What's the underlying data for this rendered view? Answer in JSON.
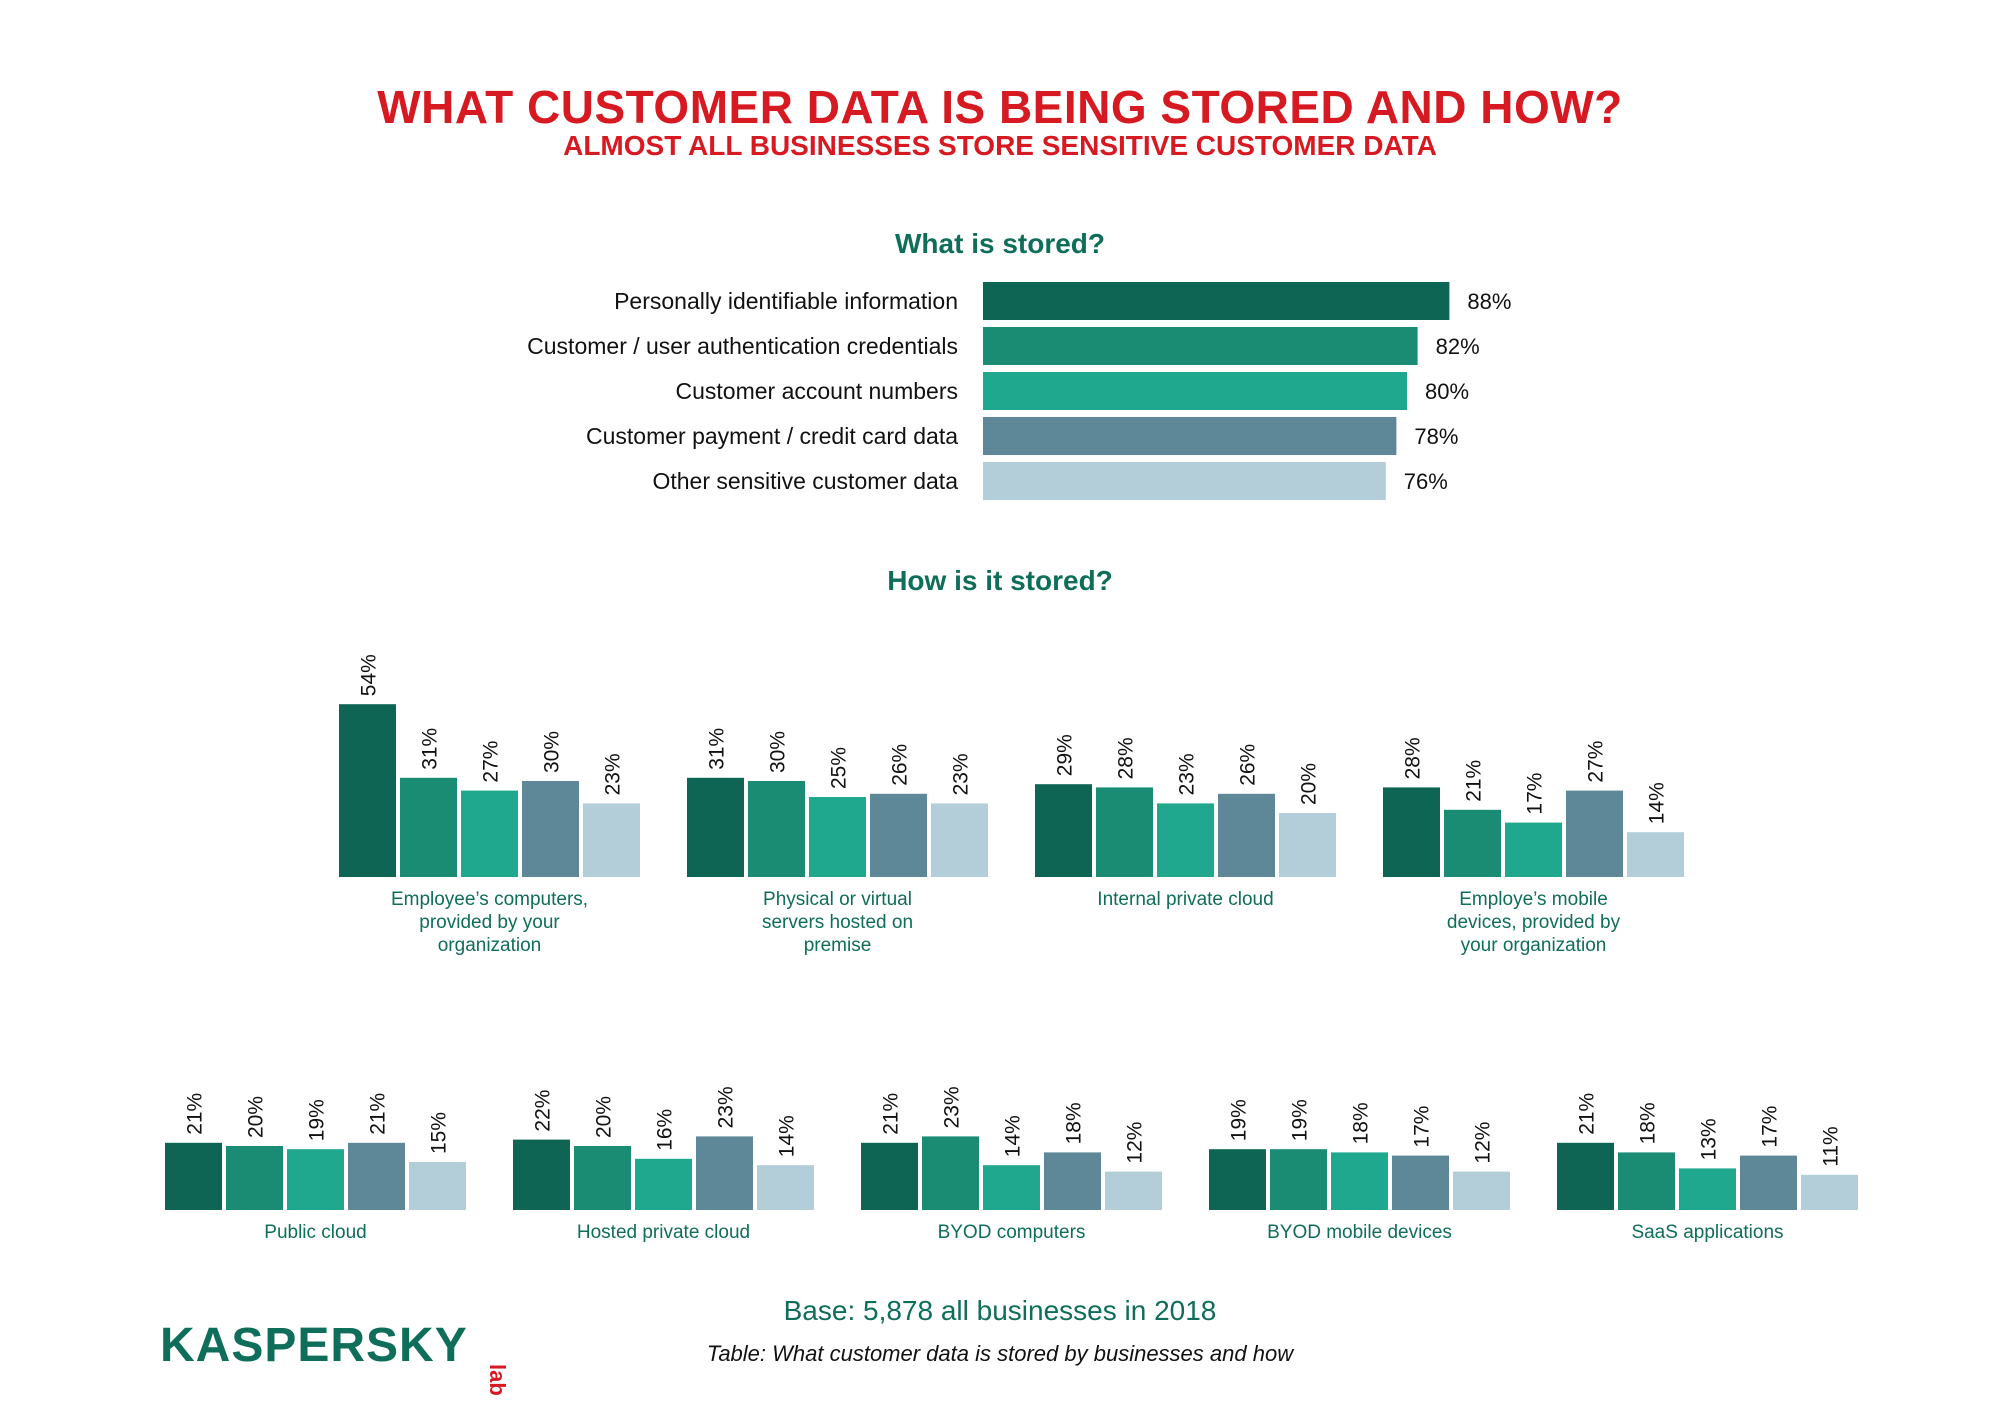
{
  "header": {
    "title": "WHAT CUSTOMER DATA IS BEING STORED AND HOW?",
    "subtitle": "ALMOST ALL BUSINESSES STORE SENSITIVE CUSTOMER DATA"
  },
  "colors": [
    "#0e6553",
    "#1a8c73",
    "#1fa88d",
    "#5e8797",
    "#b3ced8"
  ],
  "chart_data": [
    {
      "type": "bar",
      "orientation": "horizontal",
      "title": "What is stored?",
      "categories": [
        "Personally identifiable information",
        "Customer / user authentication credentials",
        "Customer account numbers",
        "Customer payment / credit card data",
        "Other sensitive customer data"
      ],
      "values": [
        88,
        82,
        80,
        78,
        76
      ],
      "value_labels": [
        "88%",
        "82%",
        "80%",
        "78%",
        "76%"
      ],
      "unit": "%"
    },
    {
      "type": "bar",
      "title": "How is it stored?",
      "series_names": [
        "Personally identifiable information",
        "Customer / user authentication credentials",
        "Customer account numbers",
        "Customer payment / credit card data",
        "Other sensitive customer data"
      ],
      "groups": [
        {
          "label": "Employee’s computers, provided by your organization",
          "label_lines": [
            "Employee’s computers,",
            "provided by your",
            "organization"
          ],
          "values": [
            54,
            31,
            27,
            30,
            23
          ]
        },
        {
          "label": "Physical or virtual servers hosted on premise",
          "label_lines": [
            "Physical or virtual",
            "servers hosted on",
            "premise"
          ],
          "values": [
            31,
            30,
            25,
            26,
            23
          ]
        },
        {
          "label": "Internal private cloud",
          "label_lines": [
            "Internal private cloud"
          ],
          "values": [
            29,
            28,
            23,
            26,
            20
          ]
        },
        {
          "label": "Employe’s mobile devices, provided by your organization",
          "label_lines": [
            "Employe’s mobile",
            "devices, provided by",
            "your organization"
          ],
          "values": [
            28,
            21,
            17,
            27,
            14
          ]
        },
        {
          "label": "Public cloud",
          "label_lines": [
            "Public cloud"
          ],
          "values": [
            21,
            20,
            19,
            21,
            15
          ]
        },
        {
          "label": "Hosted private cloud",
          "label_lines": [
            "Hosted private cloud"
          ],
          "values": [
            22,
            20,
            16,
            23,
            14
          ]
        },
        {
          "label": "BYOD computers",
          "label_lines": [
            "BYOD computers"
          ],
          "values": [
            21,
            23,
            14,
            18,
            12
          ]
        },
        {
          "label": "BYOD mobile devices",
          "label_lines": [
            "BYOD mobile devices"
          ],
          "values": [
            19,
            19,
            18,
            17,
            12
          ]
        },
        {
          "label": "SaaS applications",
          "label_lines": [
            "SaaS applications"
          ],
          "values": [
            21,
            18,
            13,
            17,
            11
          ]
        }
      ],
      "unit": "%"
    }
  ],
  "footer": {
    "base": "Base: 5,878 all businesses in 2018",
    "caption": "Table: What customer data is stored by businesses and how",
    "logo_text": "KASPERSKY",
    "logo_suffix": "lab"
  }
}
